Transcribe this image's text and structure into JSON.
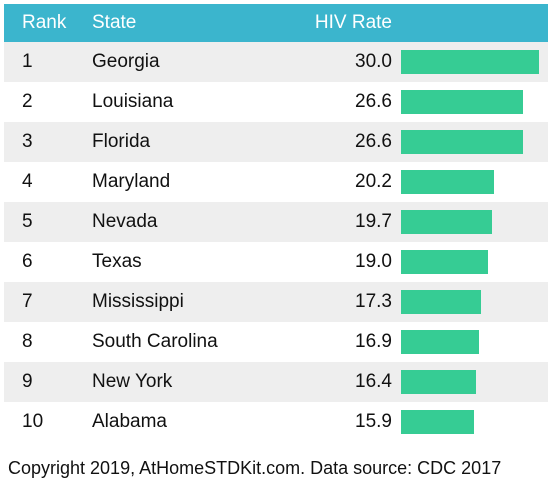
{
  "header": {
    "rank": "Rank",
    "state": "State",
    "rate": "HIV Rate"
  },
  "rows": [
    {
      "rank": "1",
      "state": "Georgia",
      "rate": "30.0"
    },
    {
      "rank": "2",
      "state": "Louisiana",
      "rate": "26.6"
    },
    {
      "rank": "3",
      "state": "Florida",
      "rate": "26.6"
    },
    {
      "rank": "4",
      "state": "Maryland",
      "rate": "20.2"
    },
    {
      "rank": "5",
      "state": "Nevada",
      "rate": "19.7"
    },
    {
      "rank": "6",
      "state": "Texas",
      "rate": "19.0"
    },
    {
      "rank": "7",
      "state": "Mississippi",
      "rate": "17.3"
    },
    {
      "rank": "8",
      "state": "South Carolina",
      "rate": "16.9"
    },
    {
      "rank": "9",
      "state": "New York",
      "rate": "16.4"
    },
    {
      "rank": "10",
      "state": "Alabama",
      "rate": "15.9"
    }
  ],
  "footer": "Copyright 2019, AtHomeSTDKit.com. Data source: CDC 2017",
  "colors": {
    "header_bg": "#3bb5cd",
    "bar": "#36cc94",
    "stripe": "#eeeeee"
  },
  "chart_data": {
    "type": "bar",
    "categories": [
      "Georgia",
      "Louisiana",
      "Florida",
      "Maryland",
      "Nevada",
      "Texas",
      "Mississippi",
      "South Carolina",
      "New York",
      "Alabama"
    ],
    "values": [
      30.0,
      26.6,
      26.6,
      20.2,
      19.7,
      19.0,
      17.3,
      16.9,
      16.4,
      15.9
    ],
    "ylabel": "HIV Rate",
    "ylim": [
      0,
      30.0
    ]
  }
}
